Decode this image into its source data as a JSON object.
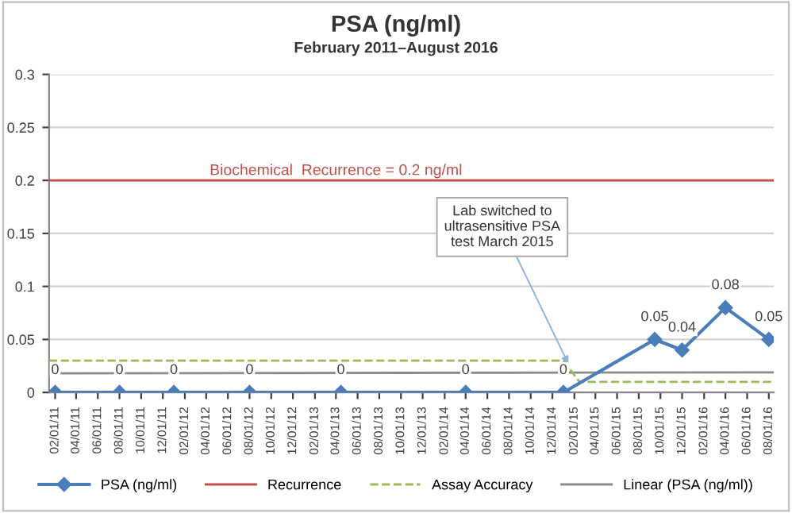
{
  "chart_data": {
    "type": "line",
    "title": "PSA (ng/ml)",
    "subtitle": "February 2011–August 2016",
    "series": [
      {
        "name": "PSA (ng/ml)",
        "type": "line",
        "color": "#4a7ebb",
        "marker": "diamond",
        "line_style": "solid",
        "x": [
          "2011-02-01",
          "2011-08-01",
          "2012-01-01",
          "2012-08-01",
          "2013-04-15",
          "2014-04-01",
          "2015-01-01",
          "2015-09-15",
          "2015-12-01",
          "2016-04-01",
          "2016-08-01"
        ],
        "values": [
          0,
          0,
          0,
          0,
          0,
          0,
          0,
          0.05,
          0.04,
          0.08,
          0.05
        ],
        "value_labels": [
          "0",
          "0",
          "0",
          "0",
          "0",
          "0",
          "0",
          "0.05",
          "0.04",
          "0.08",
          "0.05"
        ]
      },
      {
        "name": "Recurrence",
        "type": "line",
        "color": "#c0504d",
        "marker": "none",
        "line_style": "solid",
        "x": [
          "2011-01-15",
          "2016-08-15"
        ],
        "values": [
          0.2,
          0.2
        ]
      },
      {
        "name": "Assay Accuracy",
        "type": "line",
        "color": "#9bbb59",
        "marker": "none",
        "line_style": "dashed",
        "x": [
          "2011-01-15",
          "2015-01-01",
          "2015-02-15",
          "2016-08-15"
        ],
        "values": [
          0.03,
          0.03,
          0.01,
          0.01
        ]
      },
      {
        "name": "Linear (PSA (ng/ml))",
        "type": "line",
        "color": "#8c8c8c",
        "marker": "none",
        "line_style": "solid",
        "x": [
          "2011-01-15",
          "2016-08-15"
        ],
        "values": [
          0.018,
          0.019
        ]
      }
    ],
    "annotations": [
      {
        "text": "Biochemical  Recurrence = 0.2 ng/ml",
        "x": "2013-04-01",
        "y": 0.2
      },
      {
        "text": "Lab switched to\nultrasensitive PSA\ntest March 2015",
        "x": "2015-01-15",
        "y": 0.027
      }
    ],
    "xlim": [
      "2011-01-15",
      "2016-08-15"
    ],
    "xticks": [
      {
        "value": "2011-02-01",
        "label": "02/01/11"
      },
      {
        "value": "2011-04-01",
        "label": "04/01/11"
      },
      {
        "value": "2011-06-01",
        "label": "06/01/11"
      },
      {
        "value": "2011-08-01",
        "label": "08/01/11"
      },
      {
        "value": "2011-10-01",
        "label": "10/01/11"
      },
      {
        "value": "2011-12-01",
        "label": "12/01/11"
      },
      {
        "value": "2012-02-01",
        "label": "02/01/12"
      },
      {
        "value": "2012-04-01",
        "label": "04/01/12"
      },
      {
        "value": "2012-06-01",
        "label": "06/01/12"
      },
      {
        "value": "2012-08-01",
        "label": "08/01/12"
      },
      {
        "value": "2012-10-01",
        "label": "10/01/12"
      },
      {
        "value": "2012-12-01",
        "label": "12/01/12"
      },
      {
        "value": "2013-02-01",
        "label": "02/01/13"
      },
      {
        "value": "2013-04-01",
        "label": "04/01/13"
      },
      {
        "value": "2013-06-01",
        "label": "06/01/13"
      },
      {
        "value": "2013-08-01",
        "label": "08/01/13"
      },
      {
        "value": "2013-10-01",
        "label": "10/01/13"
      },
      {
        "value": "2013-12-01",
        "label": "12/01/13"
      },
      {
        "value": "2014-02-01",
        "label": "02/01/14"
      },
      {
        "value": "2014-04-01",
        "label": "04/01/14"
      },
      {
        "value": "2014-06-01",
        "label": "06/01/14"
      },
      {
        "value": "2014-08-01",
        "label": "08/01/14"
      },
      {
        "value": "2014-10-01",
        "label": "10/01/14"
      },
      {
        "value": "2014-12-01",
        "label": "12/01/14"
      },
      {
        "value": "2015-02-01",
        "label": "02/01/15"
      },
      {
        "value": "2015-04-01",
        "label": "04/01/15"
      },
      {
        "value": "2015-06-01",
        "label": "06/01/15"
      },
      {
        "value": "2015-08-01",
        "label": "08/01/15"
      },
      {
        "value": "2015-10-01",
        "label": "10/01/15"
      },
      {
        "value": "2015-12-01",
        "label": "12/01/15"
      },
      {
        "value": "2016-02-01",
        "label": "02/01/16"
      },
      {
        "value": "2016-04-01",
        "label": "04/01/16"
      },
      {
        "value": "2016-06-01",
        "label": "06/01/16"
      },
      {
        "value": "2016-08-01",
        "label": "08/01/16"
      }
    ],
    "ylim": [
      0,
      0.3
    ],
    "yticks": [
      0,
      0.05,
      0.1,
      0.15,
      0.2,
      0.25,
      0.3
    ],
    "grid": "y",
    "legend": "bottom"
  }
}
